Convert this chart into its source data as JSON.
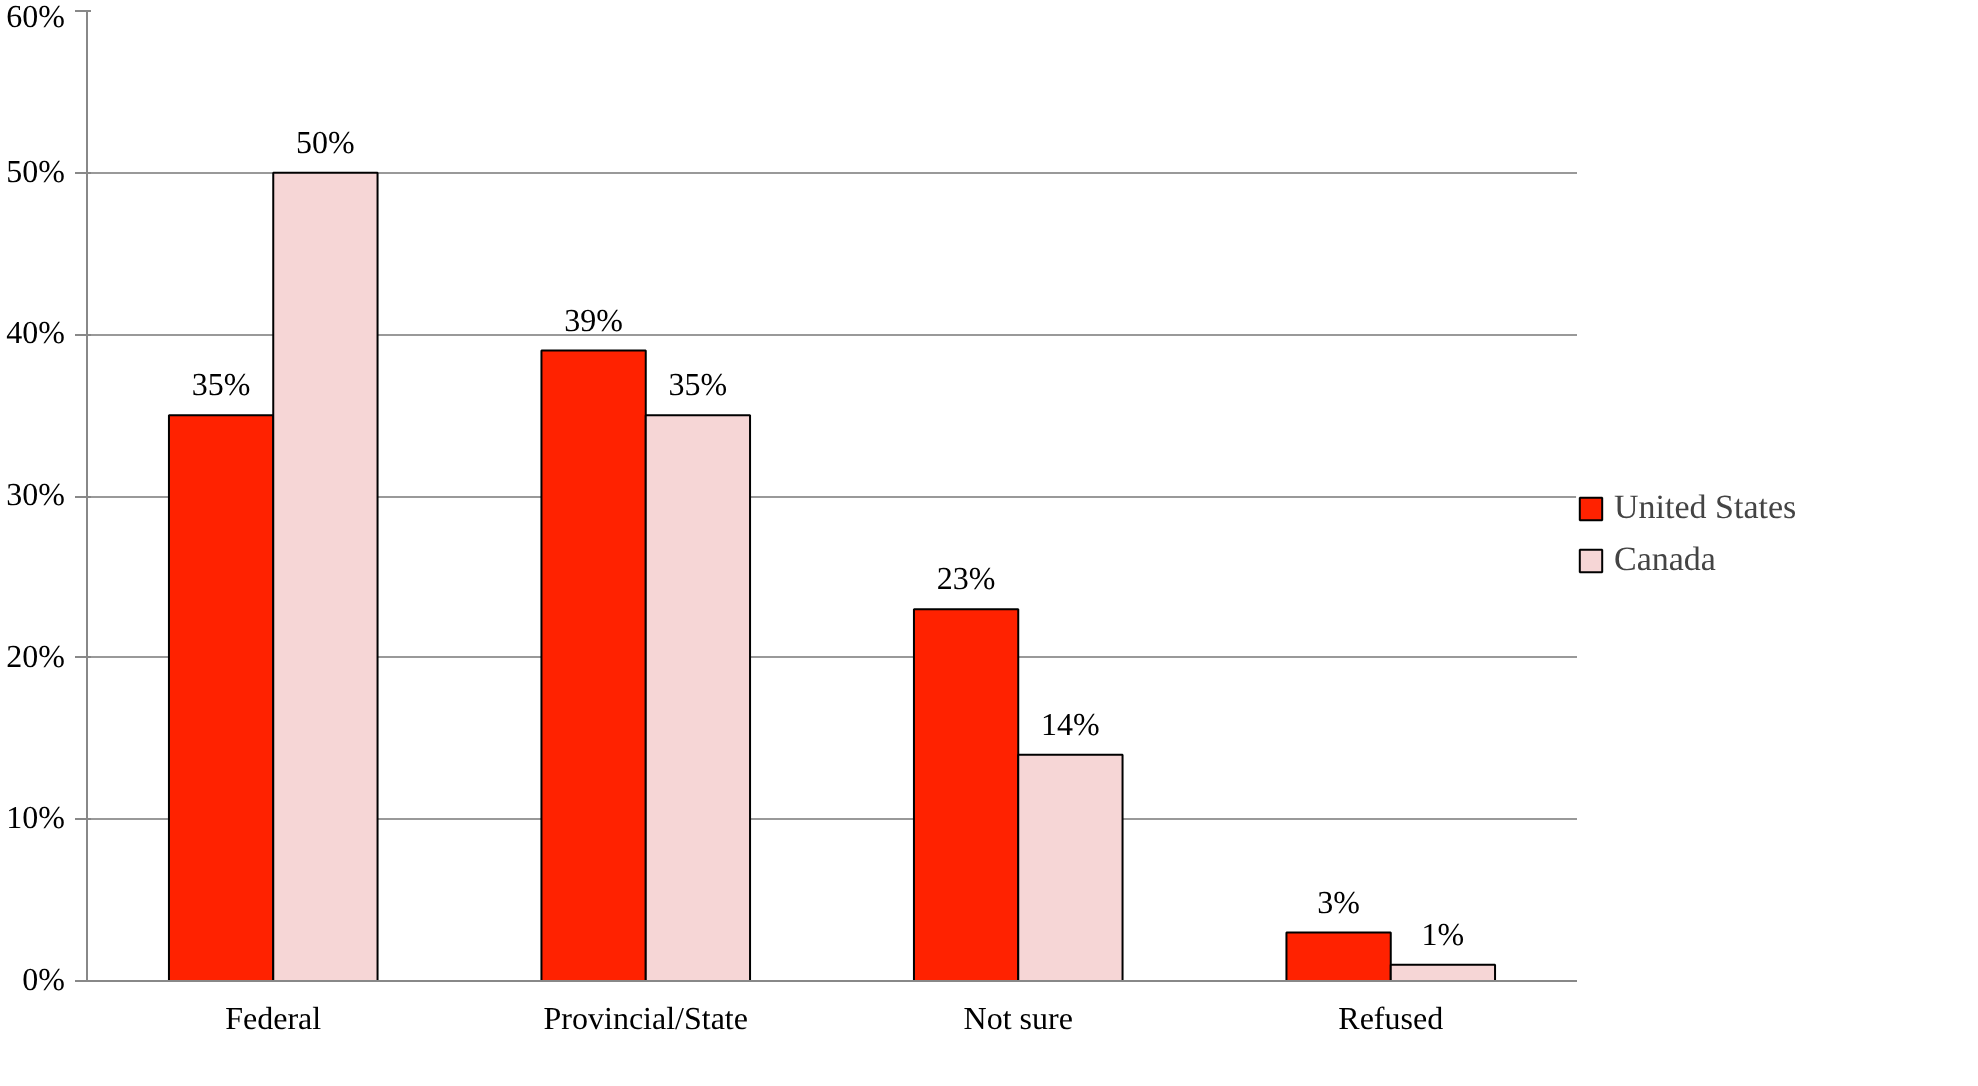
{
  "chart_data": {
    "type": "bar",
    "categories": [
      "Federal",
      "Provincial/State",
      "Not sure",
      "Refused"
    ],
    "series": [
      {
        "name": "United States",
        "color": "#ff2200",
        "values": [
          35,
          39,
          23,
          3
        ],
        "value_labels": [
          "35%",
          "39%",
          "23%",
          "3%"
        ]
      },
      {
        "name": "Canada",
        "color": "#f6d6d6",
        "values": [
          50,
          35,
          14,
          1
        ],
        "value_labels": [
          "50%",
          "35%",
          "14%",
          "1%"
        ]
      }
    ],
    "ylim": [
      0,
      60
    ],
    "yticks": [
      {
        "value": 0,
        "label": "0%"
      },
      {
        "value": 10,
        "label": "10%"
      },
      {
        "value": 20,
        "label": "20%"
      },
      {
        "value": 30,
        "label": "30%"
      },
      {
        "value": 40,
        "label": "40%"
      },
      {
        "value": 50,
        "label": "50%"
      },
      {
        "value": 60,
        "label": "60%"
      }
    ],
    "grid": "y",
    "legend": "right"
  }
}
